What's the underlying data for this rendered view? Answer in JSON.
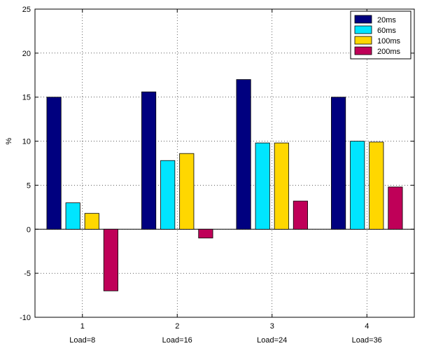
{
  "chart_data": {
    "type": "bar",
    "categories": [
      "1",
      "2",
      "3",
      "4"
    ],
    "category_sublabels": [
      "Load=8",
      "Load=16",
      "Load=24",
      "Load=36"
    ],
    "series": [
      {
        "name": "20ms",
        "color": "#00007f",
        "values": [
          15,
          15.6,
          17,
          15
        ]
      },
      {
        "name": "60ms",
        "color": "#00e5ff",
        "values": [
          3,
          7.8,
          9.8,
          10
        ]
      },
      {
        "name": "100ms",
        "color": "#ffd700",
        "values": [
          1.8,
          8.6,
          9.8,
          9.9
        ]
      },
      {
        "name": "200ms",
        "color": "#bf0058",
        "values": [
          -7,
          -1,
          3.2,
          4.8
        ]
      }
    ],
    "xlabel": "",
    "ylabel": "%",
    "ylim": [
      -10,
      25
    ],
    "yticks": [
      -10,
      -5,
      0,
      5,
      10,
      15,
      20,
      25
    ],
    "grid": true,
    "legend_position": "top-right"
  }
}
